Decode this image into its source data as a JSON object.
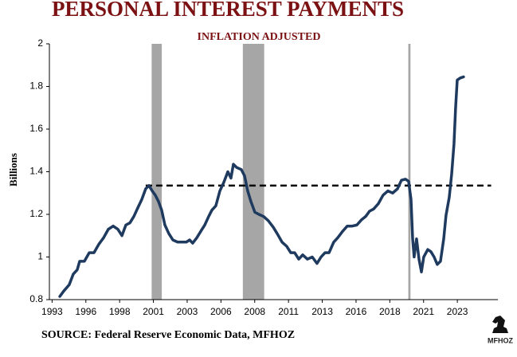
{
  "chart_data": {
    "type": "line",
    "title": "PERSONAL INTEREST PAYMENTS",
    "subtitle": "INFLATION ADJUSTED",
    "y_label": "Billions",
    "source": "SOURCE: Federal Reserve Economic Data, MFHOZ",
    "logo": "MFHOZ",
    "color": "#1f3a5f",
    "recession_color": "#a6a6a6",
    "recessions": [
      [
        2001.17,
        2001.92
      ],
      [
        2007.92,
        2009.5
      ],
      [
        2020.17,
        2020.33
      ]
    ],
    "reference_line": {
      "value": 1.335,
      "x": [
        2000.73,
        2026.3
      ]
    },
    "xlim": [
      1993.6,
      2026.8
    ],
    "ylim": [
      0.8,
      2
    ],
    "yticks": [
      0.8,
      1,
      1.2,
      1.4,
      1.6,
      1.8,
      2
    ],
    "xticks": [
      {
        "value": 1993.8,
        "label": "1993"
      },
      {
        "value": 1996.3,
        "label": "1996"
      },
      {
        "value": 1998.8,
        "label": "1998"
      },
      {
        "value": 2001.3,
        "label": "2001"
      },
      {
        "value": 2003.8,
        "label": "2003"
      },
      {
        "value": 2006.3,
        "label": "2006"
      },
      {
        "value": 2008.8,
        "label": "2008"
      },
      {
        "value": 2011.3,
        "label": "2011"
      },
      {
        "value": 2013.8,
        "label": "2013"
      },
      {
        "value": 2016.3,
        "label": "2016"
      },
      {
        "value": 2018.8,
        "label": "2018"
      },
      {
        "value": 2021.3,
        "label": "2021"
      },
      {
        "value": 2023.8,
        "label": "2023"
      }
    ],
    "x": [
      1994.37,
      1994.66,
      1995.07,
      1995.37,
      1995.66,
      1995.84,
      1996.19,
      1996.55,
      1996.9,
      1997.26,
      1997.61,
      1997.96,
      1998.32,
      1998.67,
      1998.97,
      1999.26,
      1999.56,
      1999.85,
      2000.14,
      2000.44,
      2000.73,
      2000.97,
      2001.21,
      2001.44,
      2001.68,
      2001.91,
      2002.15,
      2002.44,
      2002.74,
      2003.09,
      2003.45,
      2003.74,
      2003.98,
      2004.21,
      2004.51,
      2004.8,
      2005.1,
      2005.39,
      2005.63,
      2005.92,
      2006.22,
      2006.51,
      2006.81,
      2007.04,
      2007.22,
      2007.46,
      2007.81,
      2008.05,
      2008.28,
      2008.52,
      2008.81,
      2009.11,
      2009.46,
      2009.81,
      2010.17,
      2010.46,
      2010.82,
      2011.17,
      2011.47,
      2011.76,
      2012.06,
      2012.35,
      2012.7,
      2013.06,
      2013.41,
      2013.71,
      2014.0,
      2014.3,
      2014.65,
      2014.94,
      2015.3,
      2015.65,
      2016.01,
      2016.36,
      2016.71,
      2017.01,
      2017.3,
      2017.6,
      2017.95,
      2018.3,
      2018.66,
      2019.01,
      2019.37,
      2019.66,
      2019.96,
      2020.19,
      2020.37,
      2020.49,
      2020.6,
      2020.78,
      2020.96,
      2021.14,
      2021.31,
      2021.61,
      2021.84,
      2022.08,
      2022.31,
      2022.55,
      2022.79,
      2022.96,
      2023.2,
      2023.38,
      2023.55,
      2023.67,
      2023.79,
      2024.02,
      2024.26
    ],
    "values": [
      0.815,
      0.84,
      0.87,
      0.92,
      0.94,
      0.98,
      0.98,
      1.02,
      1.02,
      1.06,
      1.09,
      1.13,
      1.145,
      1.13,
      1.1,
      1.15,
      1.16,
      1.19,
      1.23,
      1.27,
      1.32,
      1.335,
      1.31,
      1.29,
      1.26,
      1.22,
      1.15,
      1.11,
      1.08,
      1.07,
      1.07,
      1.07,
      1.08,
      1.065,
      1.09,
      1.12,
      1.15,
      1.19,
      1.22,
      1.24,
      1.31,
      1.35,
      1.4,
      1.37,
      1.435,
      1.42,
      1.41,
      1.38,
      1.31,
      1.26,
      1.21,
      1.2,
      1.19,
      1.17,
      1.14,
      1.11,
      1.07,
      1.05,
      1.02,
      1.02,
      0.99,
      1.01,
      0.99,
      1.0,
      0.97,
      1.0,
      1.02,
      1.02,
      1.07,
      1.09,
      1.12,
      1.145,
      1.145,
      1.15,
      1.175,
      1.19,
      1.215,
      1.225,
      1.25,
      1.29,
      1.31,
      1.3,
      1.32,
      1.36,
      1.365,
      1.355,
      1.27,
      1.085,
      1.0,
      1.085,
      0.99,
      0.93,
      1.0,
      1.035,
      1.025,
      1.0,
      0.965,
      0.98,
      1.085,
      1.195,
      1.28,
      1.39,
      1.53,
      1.7,
      1.83,
      1.84,
      1.845
    ]
  }
}
